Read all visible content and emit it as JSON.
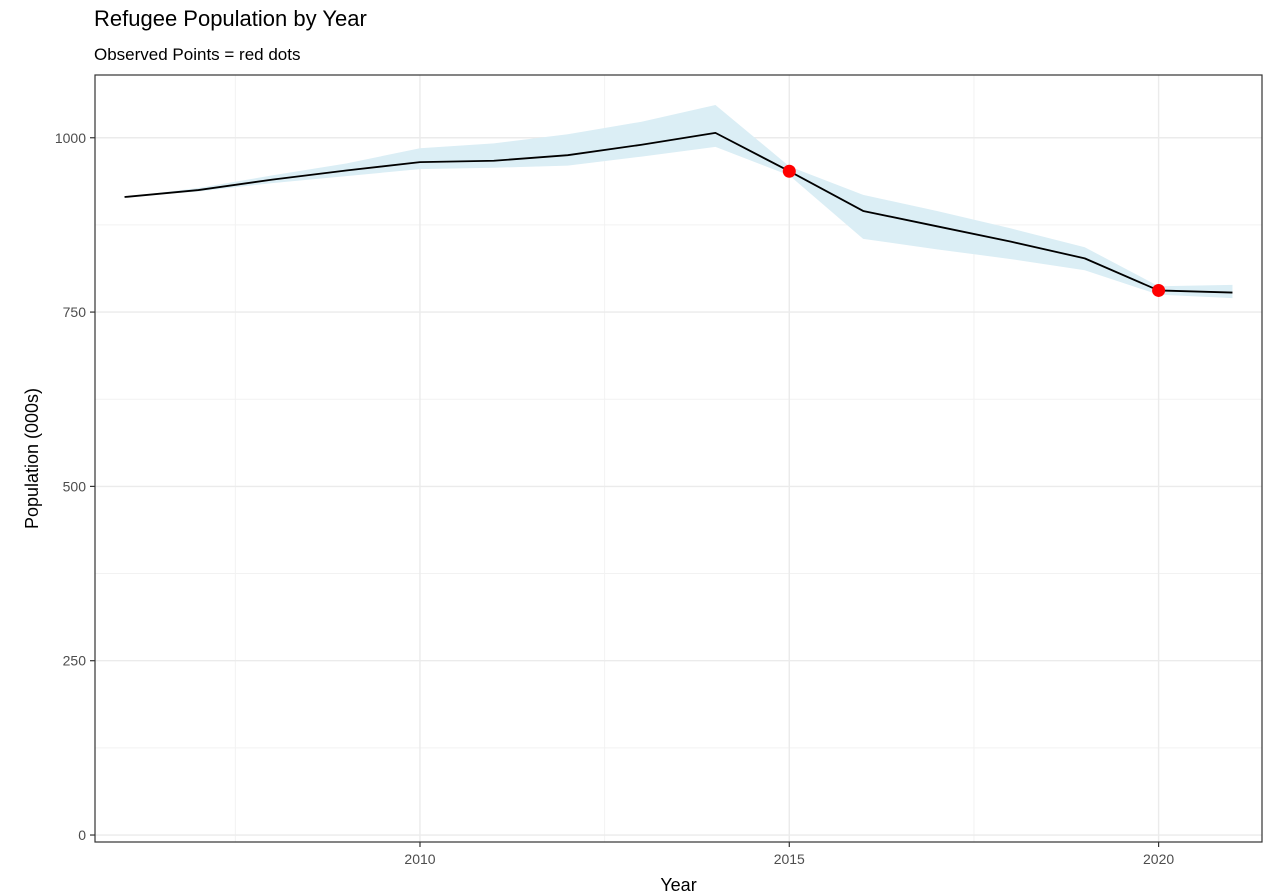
{
  "chart_data": {
    "type": "line",
    "title": "Refugee Population by Year",
    "subtitle": "Observed Points = red dots",
    "xlabel": "Year",
    "ylabel": "Population (000s)",
    "xlim": [
      2005.6,
      2021.4
    ],
    "ylim": [
      -10,
      1090
    ],
    "x_ticks": [
      2010,
      2015,
      2020
    ],
    "y_ticks": [
      0,
      250,
      500,
      750,
      1000
    ],
    "grid": true,
    "series": [
      {
        "kind": "line",
        "color": "#000000",
        "x": [
          2006,
          2007,
          2008,
          2009,
          2010,
          2011,
          2012,
          2013,
          2014,
          2015,
          2016,
          2017,
          2018,
          2019,
          2020,
          2021
        ],
        "y": [
          915,
          925,
          940,
          953,
          965,
          967,
          975,
          990,
          1007,
          952,
          895,
          873,
          851,
          827,
          781,
          778
        ]
      },
      {
        "kind": "ribbon",
        "color": "#dbeef5",
        "x": [
          2006,
          2007,
          2008,
          2009,
          2010,
          2011,
          2012,
          2013,
          2014,
          2015,
          2016,
          2017,
          2018,
          2019,
          2020,
          2021
        ],
        "lower": [
          915,
          923,
          935,
          945,
          955,
          957,
          960,
          973,
          987,
          946,
          855,
          840,
          826,
          810,
          775,
          770
        ],
        "upper": [
          915,
          928,
          946,
          963,
          985,
          992,
          1005,
          1023,
          1047,
          959,
          918,
          895,
          870,
          843,
          787,
          789
        ]
      },
      {
        "kind": "points",
        "color": "#ff0000",
        "x": [
          2015,
          2020
        ],
        "y": [
          952,
          781
        ]
      }
    ]
  }
}
